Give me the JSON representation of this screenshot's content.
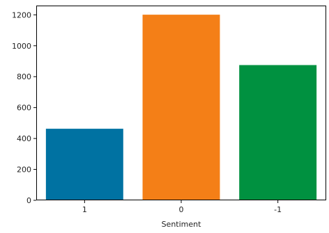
{
  "chart_data": {
    "type": "bar",
    "categories": [
      "1",
      "0",
      "-1"
    ],
    "values": [
      463,
      1201,
      875
    ],
    "colors": [
      "#0072a2",
      "#f47f17",
      "#009140"
    ],
    "title": "",
    "xlabel": "Sentiment",
    "ylabel": "",
    "ylim": [
      0,
      1260
    ],
    "yticks": [
      0,
      200,
      400,
      600,
      800,
      1000,
      1200
    ],
    "grid": false
  }
}
